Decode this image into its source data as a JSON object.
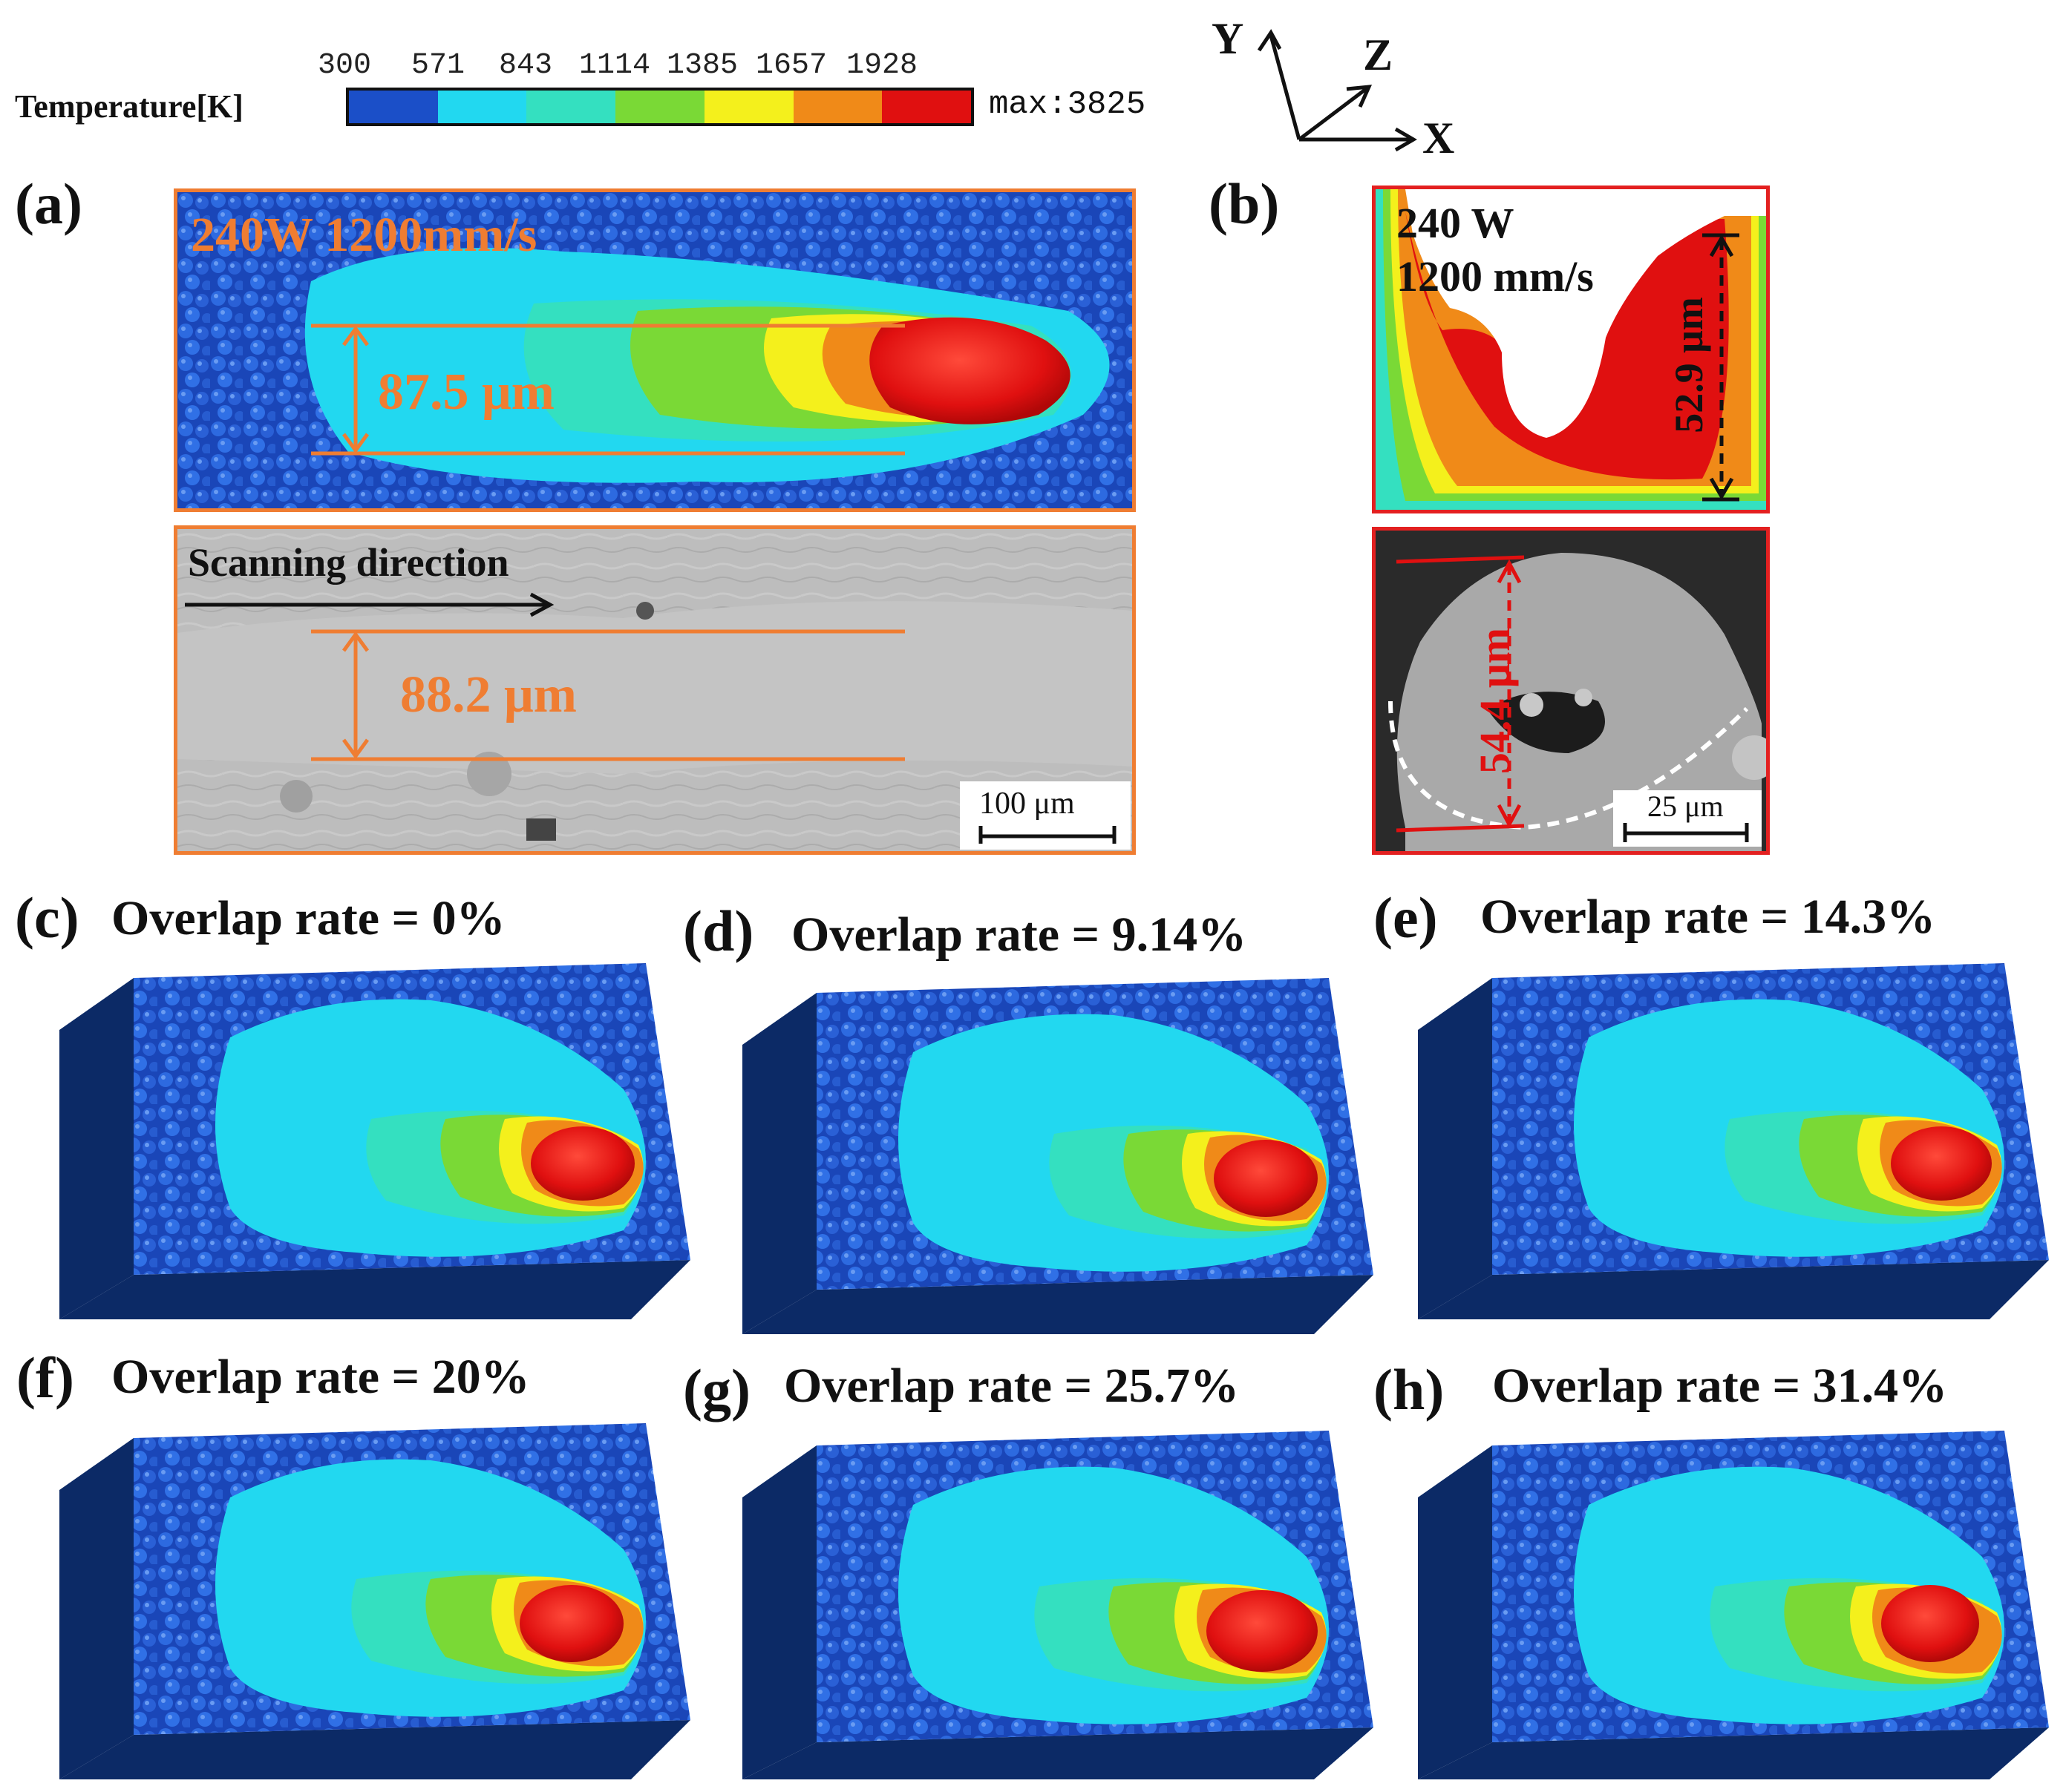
{
  "legend": {
    "title": "Temperature[K]",
    "ticks": [
      "300",
      "571",
      "843",
      "1114",
      "1385",
      "1657",
      "1928"
    ],
    "max_label": "max:3825",
    "colors": [
      "#1b4fc8",
      "#22d8f0",
      "#34e0c0",
      "#7ad936",
      "#f4f01c",
      "#f08a18",
      "#e01010"
    ]
  },
  "axes": {
    "y": "Y",
    "z": "Z",
    "x": "X"
  },
  "panel_a": {
    "letter": "(a)",
    "sim_label": "240W 1200mm/s",
    "sim_width": "87.5 μm",
    "sem_label": "Scanning direction",
    "sem_width": "88.2 μm",
    "scale_bar": "100 μm"
  },
  "panel_b": {
    "letter": "(b)",
    "power": "240 W",
    "speed": "1200 mm/s",
    "sim_depth": "52.9 μm",
    "sem_depth": "54.4 μm",
    "scale_bar": "25 μm"
  },
  "overlap_panels": [
    {
      "letter": "(c)",
      "label": "Overlap rate = 0%"
    },
    {
      "letter": "(d)",
      "label": "Overlap rate = 9.14%"
    },
    {
      "letter": "(e)",
      "label": "Overlap rate = 14.3%"
    },
    {
      "letter": "(f)",
      "label": "Overlap rate = 20%"
    },
    {
      "letter": "(g)",
      "label": "Overlap rate = 25.7%"
    },
    {
      "letter": "(h)",
      "label": "Overlap rate = 31.4%"
    }
  ]
}
